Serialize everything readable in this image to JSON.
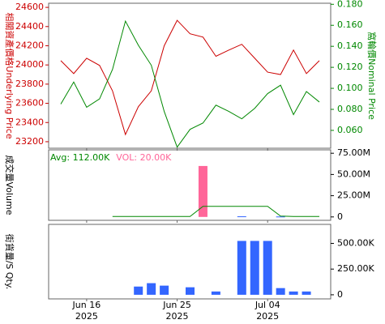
{
  "chart_data": [
    {
      "type": "line",
      "y_label": "相關資產價格Underlying Price",
      "y_label_color": "#cc0000",
      "y2_label": "窩輪價Nominal Price",
      "y2_label_color": "#008800",
      "categories": [
        null,
        null,
        "Jun 16",
        null,
        null,
        null,
        null,
        null,
        null,
        "Jun 25",
        null,
        null,
        null,
        null,
        null,
        null,
        "Jul 04",
        null,
        null,
        null,
        null
      ],
      "category_years": [
        null,
        null,
        "2025",
        null,
        null,
        null,
        null,
        null,
        null,
        "2025",
        null,
        null,
        null,
        null,
        null,
        null,
        "2025",
        null,
        null,
        null,
        null
      ],
      "ylim": [
        23132,
        24643
      ],
      "yticks": [
        23200,
        23400,
        23600,
        23800,
        24000,
        24200,
        24400,
        24600
      ],
      "y2lim": [
        0.043,
        0.181
      ],
      "y2ticks": [
        {
          "value": 0.06,
          "label": "0.060"
        },
        {
          "value": 0.08,
          "label": "0.080"
        },
        {
          "value": 0.1,
          "label": "0.100"
        },
        {
          "value": 0.12,
          "label": "0.120"
        },
        {
          "value": 0.14,
          "label": "0.140"
        },
        {
          "value": 0.16,
          "label": "0.160"
        },
        {
          "value": 0.18,
          "label": "0.180"
        }
      ],
      "series": [
        {
          "color": "#cc0000",
          "values": [
            24045,
            23910,
            24070,
            23995,
            23730,
            23275,
            23565,
            23730,
            24200,
            24465,
            24325,
            24290,
            24090,
            24155,
            24215,
            24070,
            23925,
            23900,
            24155,
            23910,
            24045
          ]
        },
        {
          "color": "#008800",
          "axis": "y2",
          "values": [
            0.085,
            0.106,
            0.082,
            0.09,
            0.118,
            0.164,
            0.141,
            0.122,
            0.078,
            0.044,
            0.061,
            0.067,
            0.084,
            0.078,
            0.071,
            0.081,
            0.095,
            0.103,
            0.075,
            0.097,
            0.087
          ]
        }
      ]
    },
    {
      "type": "bar",
      "y_label": "成交量Volume",
      "ylim": [
        -4000000,
        79000000
      ],
      "yticks": [
        0,
        {
          "value": 25000000,
          "label": "25.00M"
        },
        {
          "value": 50000000,
          "label": "50.00M"
        },
        {
          "value": 75000000,
          "label": "75.00M"
        }
      ],
      "series": [
        {
          "name": "VOL: 20.00K",
          "color": "#ff6699",
          "kind": "bar",
          "colors": [
            null,
            null,
            null,
            null,
            null,
            null,
            null,
            null,
            null,
            null,
            null,
            "#ff6699",
            null,
            null,
            "#3366ff",
            null,
            null,
            "#3366ff",
            null,
            null,
            null
          ],
          "values": [
            null,
            null,
            null,
            null,
            null,
            null,
            null,
            null,
            null,
            null,
            null,
            60000000,
            null,
            null,
            700000,
            null,
            null,
            500000,
            null,
            null,
            null
          ]
        },
        {
          "name": "Avg: 112.00K",
          "color": "#008800",
          "kind": "line",
          "values": [
            null,
            null,
            null,
            null,
            500000,
            500000,
            500000,
            500000,
            500000,
            500000,
            500000,
            12500000,
            12500000,
            12500000,
            12500000,
            12500000,
            12500000,
            1000000,
            500000,
            500000,
            500000
          ]
        }
      ]
    },
    {
      "type": "bar",
      "y_label": "街貨量/S Qty.",
      "ylim": [
        -40000,
        685000
      ],
      "yticks": [
        0,
        {
          "value": 250000,
          "label": "250.00K"
        },
        {
          "value": 500000,
          "label": "500.00K"
        }
      ],
      "series": [
        {
          "color": "#3366ff",
          "kind": "bar",
          "values": [
            null,
            null,
            null,
            null,
            null,
            null,
            80000,
            113000,
            89000,
            null,
            73000,
            null,
            32000,
            null,
            524000,
            524000,
            524000,
            65000,
            32000,
            32000,
            null
          ]
        }
      ]
    }
  ]
}
